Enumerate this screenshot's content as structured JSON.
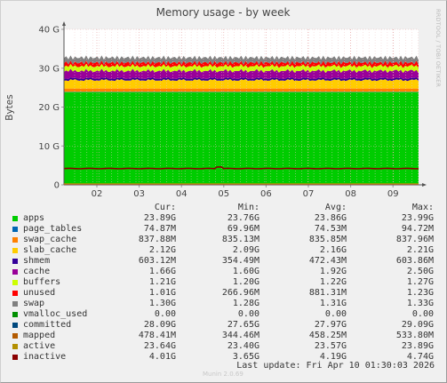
{
  "chart_data": {
    "type": "area",
    "title": "Memory usage - by week",
    "ylabel": "Bytes",
    "side_label": "RRDTOOL / TOBI OETIKER",
    "ylim": [
      0,
      40
    ],
    "y_unit": "G",
    "yticks": [
      "0",
      "10 G",
      "20 G",
      "30 G",
      "40 G"
    ],
    "xticks": [
      "02",
      "03",
      "04",
      "05",
      "06",
      "07",
      "08",
      "09"
    ],
    "stacking_order_bottom_to_top": [
      "apps",
      "page_tables",
      "swap_cache",
      "slab_cache",
      "shmem",
      "cache",
      "buffers",
      "unused",
      "swap"
    ],
    "series": [
      {
        "name": "apps",
        "color": "#00cc00",
        "avg_gb": 23.86
      },
      {
        "name": "page_tables",
        "color": "#0066b3",
        "avg_gb": 0.07453
      },
      {
        "name": "swap_cache",
        "color": "#ff8000",
        "avg_gb": 0.83585
      },
      {
        "name": "slab_cache",
        "color": "#ffcc00",
        "avg_gb": 2.16
      },
      {
        "name": "shmem",
        "color": "#330099",
        "avg_gb": 0.47243
      },
      {
        "name": "cache",
        "color": "#990099",
        "avg_gb": 1.92
      },
      {
        "name": "buffers",
        "color": "#ccff00",
        "avg_gb": 1.22
      },
      {
        "name": "unused",
        "color": "#ff0000",
        "avg_gb": 0.88131
      },
      {
        "name": "swap",
        "color": "#808080",
        "avg_gb": 1.31
      },
      {
        "name": "inactive",
        "color": "#8b0000",
        "avg_gb": 4.19,
        "line": true
      }
    ]
  },
  "legend": {
    "headers": [
      "Cur:",
      "Min:",
      "Avg:",
      "Max:"
    ],
    "rows": [
      {
        "name": "apps",
        "color": "#00cc00",
        "cur": "23.89G",
        "min": "23.76G",
        "avg": "23.86G",
        "max": "23.99G"
      },
      {
        "name": "page_tables",
        "color": "#0066b3",
        "cur": "74.87M",
        "min": "69.96M",
        "avg": "74.53M",
        "max": "94.72M"
      },
      {
        "name": "swap_cache",
        "color": "#ff8000",
        "cur": "837.88M",
        "min": "835.13M",
        "avg": "835.85M",
        "max": "837.96M"
      },
      {
        "name": "slab_cache",
        "color": "#ffcc00",
        "cur": "2.12G",
        "min": "2.09G",
        "avg": "2.16G",
        "max": "2.21G"
      },
      {
        "name": "shmem",
        "color": "#330099",
        "cur": "603.12M",
        "min": "354.49M",
        "avg": "472.43M",
        "max": "603.86M"
      },
      {
        "name": "cache",
        "color": "#990099",
        "cur": "1.66G",
        "min": "1.60G",
        "avg": "1.92G",
        "max": "2.50G"
      },
      {
        "name": "buffers",
        "color": "#ccff00",
        "cur": "1.21G",
        "min": "1.20G",
        "avg": "1.22G",
        "max": "1.27G"
      },
      {
        "name": "unused",
        "color": "#ff0000",
        "cur": "1.01G",
        "min": "266.96M",
        "avg": "881.31M",
        "max": "1.23G"
      },
      {
        "name": "swap",
        "color": "#808080",
        "cur": "1.30G",
        "min": "1.28G",
        "avg": "1.31G",
        "max": "1.33G"
      },
      {
        "name": "vmalloc_used",
        "color": "#008f00",
        "cur": "0.00",
        "min": "0.00",
        "avg": "0.00",
        "max": "0.00"
      },
      {
        "name": "committed",
        "color": "#00487d",
        "cur": "28.09G",
        "min": "27.65G",
        "avg": "27.97G",
        "max": "29.09G"
      },
      {
        "name": "mapped",
        "color": "#b35a00",
        "cur": "478.41M",
        "min": "344.46M",
        "avg": "458.25M",
        "max": "533.80M"
      },
      {
        "name": "active",
        "color": "#b38f00",
        "cur": "23.64G",
        "min": "23.40G",
        "avg": "23.57G",
        "max": "23.89G"
      },
      {
        "name": "inactive",
        "color": "#8b0000",
        "cur": "4.01G",
        "min": "3.65G",
        "avg": "4.19G",
        "max": "4.74G"
      }
    ]
  },
  "footer": {
    "last_update": "Last update: Fri Apr 10 01:30:03 2026",
    "brand": "Munin 2.0.69"
  }
}
